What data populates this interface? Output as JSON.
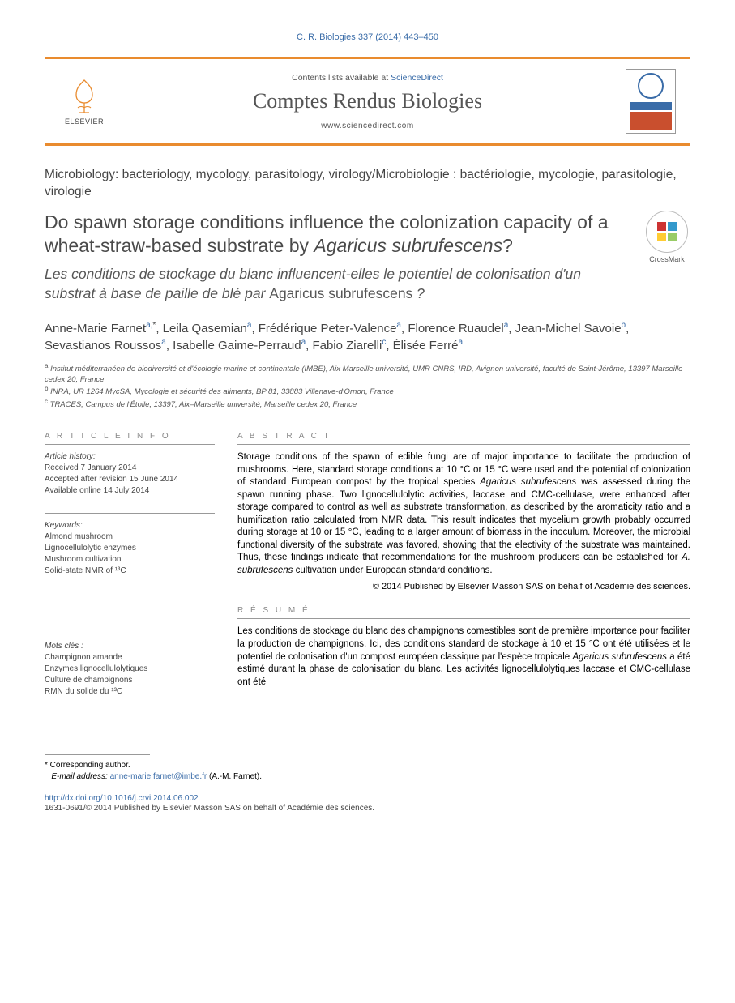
{
  "citation": "C. R. Biologies 337 (2014) 443–450",
  "header": {
    "contents_prefix": "Contents lists available at ",
    "contents_link": "ScienceDirect",
    "journal": "Comptes Rendus Biologies",
    "url": "www.sciencedirect.com",
    "elsevier": "ELSEVIER"
  },
  "article_type": "Microbiology: bacteriology, mycology, parasitology, virology/Microbiologie : bactériologie, mycologie, parasitologie, virologie",
  "title_en_1": "Do spawn storage conditions influence the colonization capacity of a wheat-straw-based substrate by ",
  "title_en_it": "Agaricus subrufescens",
  "title_en_2": "?",
  "title_fr_1": "Les conditions de stockage du blanc influencent-elles le potentiel de colonisation d'un substrat à base de paille de blé par ",
  "title_fr_up": "Agaricus subrufescens",
  "title_fr_2": " ?",
  "crossmark": "CrossMark",
  "authors_html": "Anne-Marie Farnet|a,*|, Leila Qasemian|a|, Frédérique Peter-Valence|a|, Florence Ruaudel|a|, Jean-Michel Savoie|b|, Sevastianos Roussos|a|, Isabelle Gaime-Perraud|a|, Fabio Ziarelli|c|, Élisée Ferré|a|",
  "authors": [
    {
      "name": "Anne-Marie Farnet",
      "sup": "a,*"
    },
    {
      "name": "Leila Qasemian",
      "sup": "a"
    },
    {
      "name": "Frédérique Peter-Valence",
      "sup": "a"
    },
    {
      "name": "Florence Ruaudel",
      "sup": "a"
    },
    {
      "name": "Jean-Michel Savoie",
      "sup": "b"
    },
    {
      "name": "Sevastianos Roussos",
      "sup": "a"
    },
    {
      "name": "Isabelle Gaime-Perraud",
      "sup": "a"
    },
    {
      "name": "Fabio Ziarelli",
      "sup": "c"
    },
    {
      "name": "Élisée Ferré",
      "sup": "a"
    }
  ],
  "affiliations": {
    "a": "Institut méditerranéen de biodiversité et d'écologie marine et continentale (IMBE), Aix Marseille université, UMR CNRS, IRD, Avignon université, faculté de Saint-Jérôme, 13397 Marseille cedex 20, France",
    "b": "INRA, UR 1264 MycSA, Mycologie et sécurité des aliments, BP 81, 33883 Villenave-d'Ornon, France",
    "c": "TRACES, Campus de l'Étoile, 13397, Aix–Marseille université, Marseille cedex 20, France"
  },
  "left": {
    "info_head": "A R T I C L E    I N F O",
    "history_lbl": "Article history:",
    "received": "Received 7 January 2014",
    "accepted": "Accepted after revision 15 June 2014",
    "online": "Available online 14 July 2014",
    "kw_lbl": "Keywords:",
    "kw": [
      "Almond mushroom",
      "Lignocellulolytic enzymes",
      "Mushroom cultivation",
      "Solid-state NMR of ¹³C"
    ],
    "mc_lbl": "Mots clés :",
    "mc": [
      "Champignon amande",
      "Enzymes lignocellulolytiques",
      "Culture de champignons",
      "RMN du solide du ¹³C"
    ]
  },
  "abstract": {
    "head": "A B S T R A C T",
    "body_1": "Storage conditions of the spawn of edible fungi are of major importance to facilitate the production of mushrooms. Here, standard storage conditions at 10 °C or 15 °C were used and the potential of colonization of standard European compost by the tropical species ",
    "body_it1": "Agaricus subrufescens",
    "body_2": " was assessed during the spawn running phase. Two lignocellulolytic activities, laccase and CMC-cellulase, were enhanced after storage compared to control as well as substrate transformation, as described by the aromaticity ratio and a humification ratio calculated from NMR data. This result indicates that mycelium growth probably occurred during storage at 10 or 15 °C, leading to a larger amount of biomass in the inoculum. Moreover, the microbial functional diversity of the substrate was favored, showing that the electivity of the substrate was maintained. Thus, these findings indicate that recommendations for the mushroom producers can be established for ",
    "body_it2": "A. subrufescens",
    "body_3": " cultivation under European standard conditions.",
    "copyright": "© 2014 Published by Elsevier Masson SAS on behalf of Académie des sciences."
  },
  "resume": {
    "head": "R É S U M É",
    "body_1": "Les conditions de stockage du blanc des champignons comestibles sont de première importance pour faciliter la production de champignons. Ici, des conditions standard de stockage à 10 et 15 °C ont été utilisées et le potentiel de colonisation d'un compost européen classique par l'espèce tropicale ",
    "body_it1": "Agaricus subrufescens",
    "body_2": " a été estimé durant la phase de colonisation du blanc. Les activités lignocellulolytiques laccase et CMC-cellulase ont été"
  },
  "footnote": {
    "corr": "Corresponding author.",
    "email_lbl": "E-mail address: ",
    "email": "anne-marie.farnet@imbe.fr",
    "email_tail": " (A.-M. Farnet)."
  },
  "doi": "http://dx.doi.org/10.1016/j.crvi.2014.06.002",
  "issn_line": "1631-0691/© 2014 Published by Elsevier Masson SAS on behalf of Académie des sciences."
}
